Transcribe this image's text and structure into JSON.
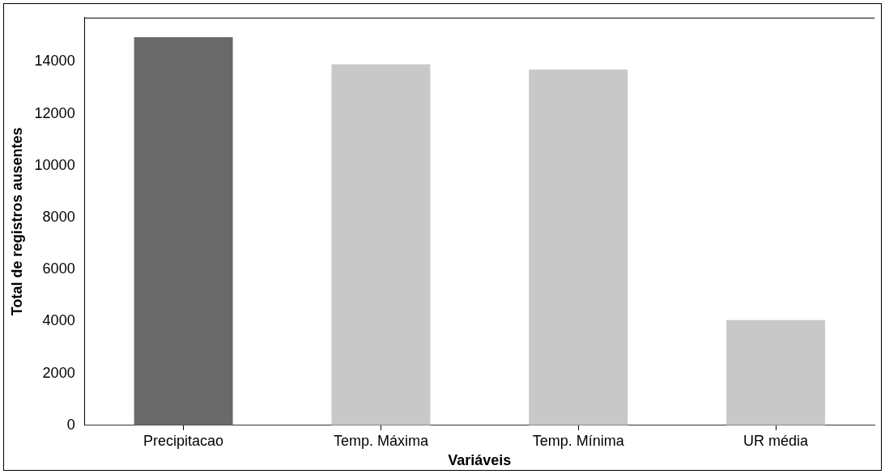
{
  "chart_data": {
    "type": "bar",
    "xlabel": "Variáveis",
    "ylabel": "Total de registros ausentes",
    "categories": [
      "Precipitacao",
      "Temp. Máxima",
      "Temp. Mínima",
      "UR média"
    ],
    "values": [
      14950,
      13900,
      13700,
      4050
    ],
    "colors": [
      "#696969",
      "#c8c8c8",
      "#c8c8c8",
      "#c8c8c8"
    ],
    "ylim": [
      0,
      15700
    ],
    "yticks": [
      0,
      2000,
      4000,
      6000,
      8000,
      10000,
      12000,
      14000
    ],
    "grid": false,
    "legend": false
  }
}
